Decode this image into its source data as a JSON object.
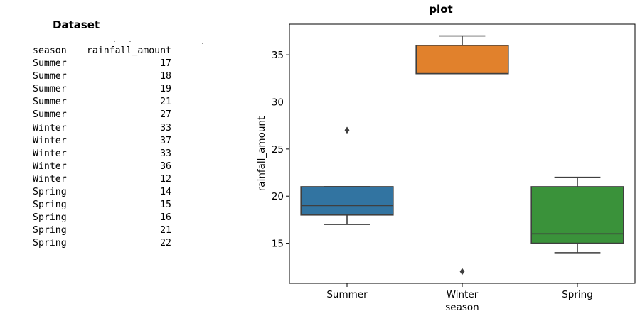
{
  "dataset": {
    "title": "Dataset",
    "columns": [
      "season",
      "rainfall_amount"
    ],
    "rows": [
      [
        "Summer",
        "17"
      ],
      [
        "Summer",
        "18"
      ],
      [
        "Summer",
        "19"
      ],
      [
        "Summer",
        "21"
      ],
      [
        "Summer",
        "27"
      ],
      [
        "Winter",
        "33"
      ],
      [
        "Winter",
        "37"
      ],
      [
        "Winter",
        "33"
      ],
      [
        "Winter",
        "36"
      ],
      [
        "Winter",
        "12"
      ],
      [
        "Spring",
        "14"
      ],
      [
        "Spring",
        "15"
      ],
      [
        "Spring",
        "16"
      ],
      [
        "Spring",
        "21"
      ],
      [
        "Spring",
        "22"
      ]
    ]
  },
  "chart_data": {
    "type": "box",
    "title": "plot",
    "xlabel": "season",
    "ylabel": "rainfall_amount",
    "categories": [
      "Summer",
      "Winter",
      "Spring"
    ],
    "yticks": [
      15,
      20,
      25,
      30,
      35
    ],
    "ylim": [
      10.75,
      38.25
    ],
    "grid": false,
    "boxes": [
      {
        "category": "Summer",
        "whisker_low": 17,
        "q1": 18,
        "median": 19,
        "q3": 21,
        "whisker_high": 21,
        "outliers": [
          27
        ],
        "color": "#3274a1"
      },
      {
        "category": "Winter",
        "whisker_low": 33,
        "q1": 33,
        "median": 33,
        "q3": 36,
        "whisker_high": 37,
        "outliers": [
          12
        ],
        "color": "#e1812c"
      },
      {
        "category": "Spring",
        "whisker_low": 14,
        "q1": 15,
        "median": 16,
        "q3": 21,
        "whisker_high": 22,
        "outliers": [],
        "color": "#3a923a"
      }
    ]
  }
}
